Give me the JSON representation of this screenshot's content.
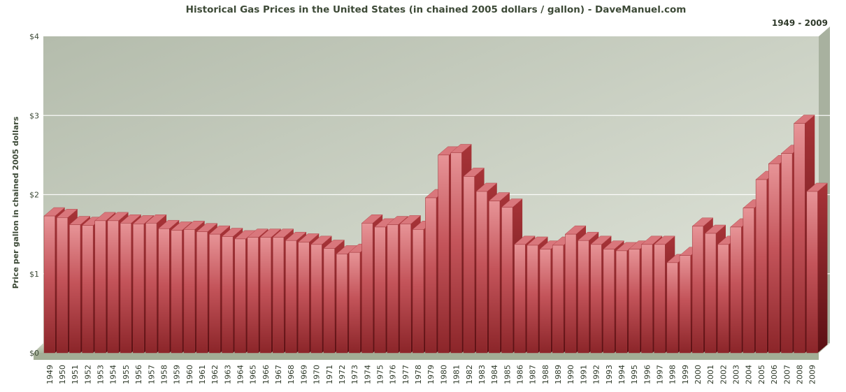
{
  "chart_data": {
    "type": "bar",
    "title": "Historical Gas Prices in the United States (in chained 2005 dollars / gallon) - DaveManuel.com",
    "subtitle": "1949 - 2009",
    "ylabel": "Price per gallon in chained 2005 dollars",
    "xlabel": "",
    "ylim": [
      0,
      4
    ],
    "yticks": [
      "$0",
      "$1",
      "$2",
      "$3",
      "$4"
    ],
    "grid": true,
    "legend": "none",
    "colors": {
      "bar_front": "#c8555a",
      "bar_top": "#e58a8e",
      "bar_side": "#7e1d21",
      "plot_bg": "#c7cdbd",
      "floor": "#b9c3ae"
    },
    "categories": [
      "1949",
      "1950",
      "1951",
      "1952",
      "1953",
      "1954",
      "1955",
      "1956",
      "1957",
      "1958",
      "1959",
      "1960",
      "1961",
      "1962",
      "1963",
      "1964",
      "1965",
      "1966",
      "1967",
      "1968",
      "1969",
      "1970",
      "1971",
      "1972",
      "1973",
      "1974",
      "1975",
      "1976",
      "1977",
      "1978",
      "1979",
      "1980",
      "1981",
      "1982",
      "1983",
      "1984",
      "1985",
      "1986",
      "1987",
      "1988",
      "1989",
      "1990",
      "1991",
      "1992",
      "1993",
      "1994",
      "1995",
      "1996",
      "1997",
      "1998",
      "1999",
      "2000",
      "2001",
      "2002",
      "2003",
      "2004",
      "2005",
      "2006",
      "2007",
      "2008",
      "2009"
    ],
    "values": [
      1.73,
      1.71,
      1.62,
      1.61,
      1.67,
      1.67,
      1.64,
      1.63,
      1.64,
      1.57,
      1.55,
      1.56,
      1.53,
      1.5,
      1.47,
      1.44,
      1.46,
      1.46,
      1.46,
      1.42,
      1.4,
      1.37,
      1.32,
      1.25,
      1.27,
      1.64,
      1.59,
      1.62,
      1.63,
      1.56,
      1.96,
      2.5,
      2.53,
      2.23,
      2.04,
      1.92,
      1.84,
      1.37,
      1.36,
      1.31,
      1.36,
      1.5,
      1.42,
      1.37,
      1.31,
      1.29,
      1.31,
      1.37,
      1.37,
      1.14,
      1.23,
      1.6,
      1.51,
      1.37,
      1.59,
      1.83,
      2.19,
      2.39,
      2.52,
      2.9,
      2.04
    ]
  }
}
